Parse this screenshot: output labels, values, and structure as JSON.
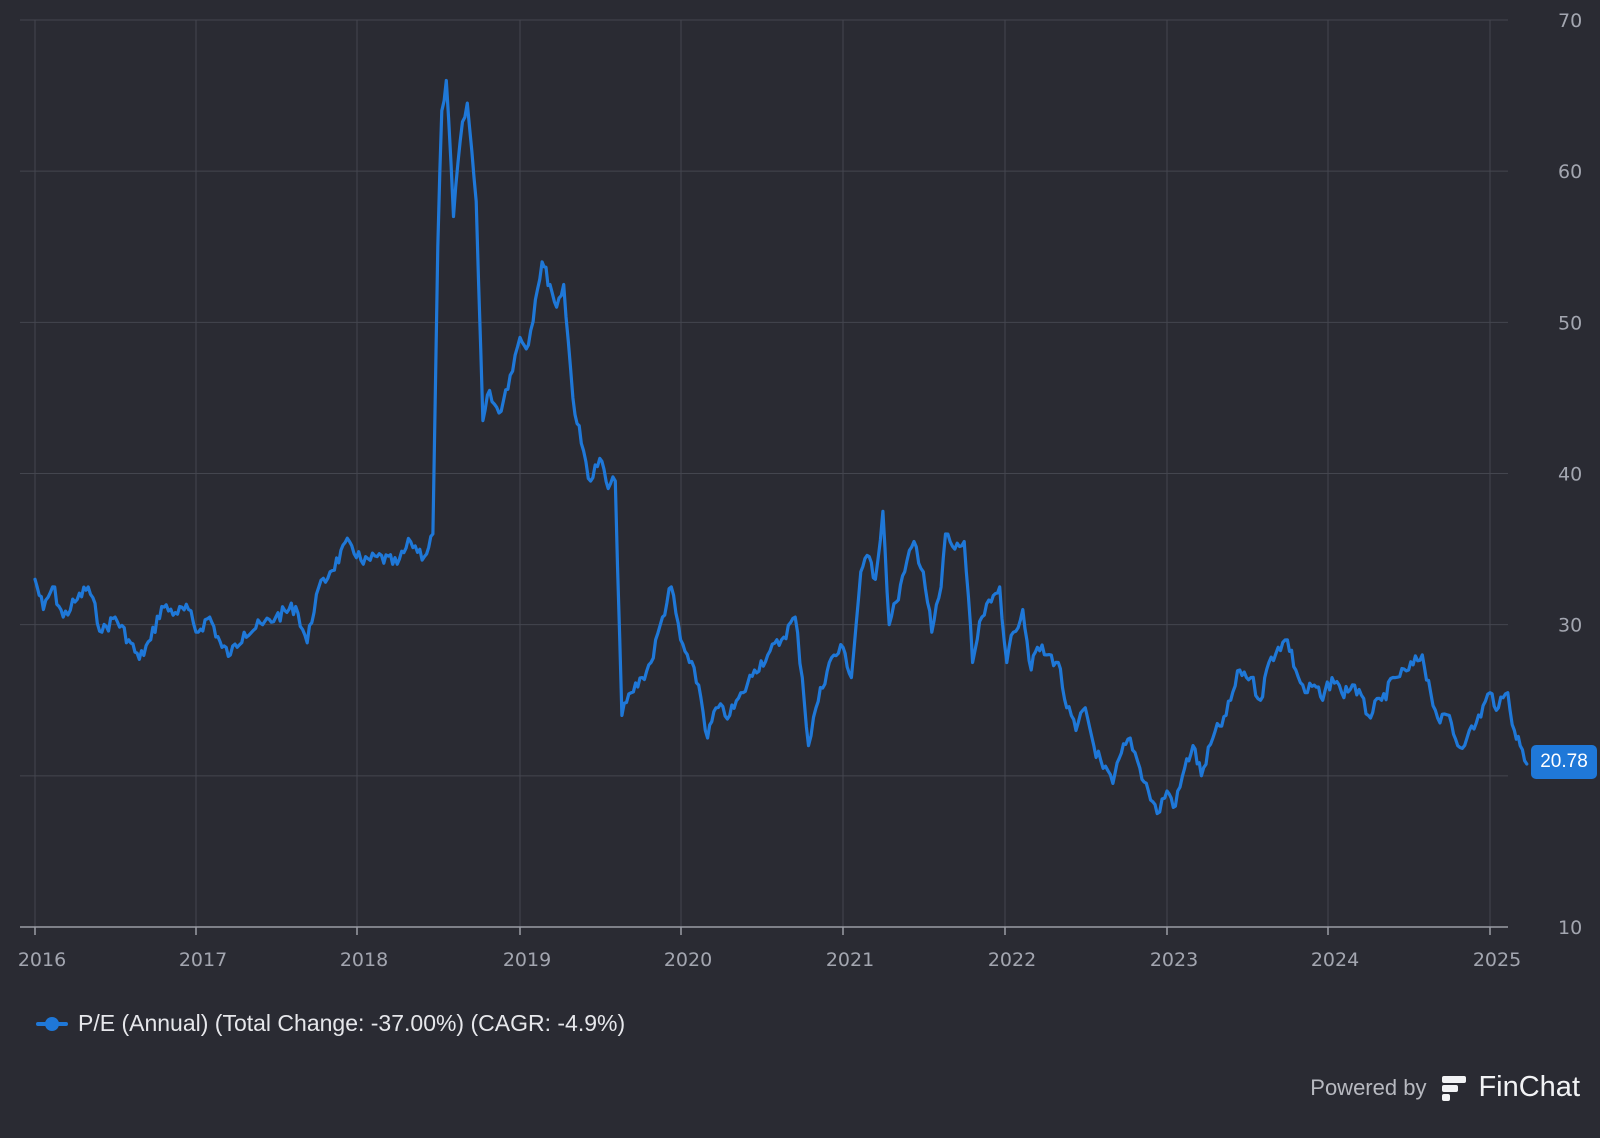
{
  "colors": {
    "background": "#2a2b33",
    "series": "#1f78d8",
    "grid": "#44464f"
  },
  "chart_data": {
    "type": "line",
    "title": "",
    "xlabel": "",
    "ylabel": "",
    "x_ticks": [
      "2016",
      "2017",
      "2018",
      "2019",
      "2020",
      "2021",
      "2022",
      "2023",
      "2024",
      "2025"
    ],
    "y_ticks": [
      10,
      30,
      40,
      50,
      60,
      70
    ],
    "ylim": [
      10,
      70
    ],
    "xlim": [
      "2016-01-01",
      "2025-03-31"
    ],
    "grid": true,
    "legend_position": "bottom-left",
    "last_value_label": "20.78",
    "series": [
      {
        "name": "P/E (Annual) (Total Change: -37.00%) (CAGR: -4.9%)",
        "points": [
          [
            "2016-01-01",
            33.0
          ],
          [
            "2016-01-20",
            31.0
          ],
          [
            "2016-02-10",
            32.5
          ],
          [
            "2016-03-05",
            30.5
          ],
          [
            "2016-04-01",
            31.5
          ],
          [
            "2016-05-01",
            32.5
          ],
          [
            "2016-06-01",
            29.5
          ],
          [
            "2016-07-01",
            30.5
          ],
          [
            "2016-08-01",
            29.0
          ],
          [
            "2016-08-25",
            27.7
          ],
          [
            "2016-09-20",
            29.0
          ],
          [
            "2016-10-15",
            31.2
          ],
          [
            "2016-11-15",
            30.8
          ],
          [
            "2016-12-15",
            31.0
          ],
          [
            "2017-01-01",
            29.5
          ],
          [
            "2017-02-01",
            30.5
          ],
          [
            "2017-03-01",
            28.5
          ],
          [
            "2017-03-20",
            28.0
          ],
          [
            "2017-04-20",
            29.5
          ],
          [
            "2017-06-01",
            30.0
          ],
          [
            "2017-07-01",
            30.5
          ],
          [
            "2017-08-15",
            31.2
          ],
          [
            "2017-09-10",
            28.8
          ],
          [
            "2017-10-01",
            32.0
          ],
          [
            "2017-11-01",
            33.5
          ],
          [
            "2017-12-15",
            35.5
          ],
          [
            "2018-01-15",
            34.0
          ],
          [
            "2018-02-15",
            34.5
          ],
          [
            "2018-04-01",
            34.0
          ],
          [
            "2018-05-01",
            35.5
          ],
          [
            "2018-06-01",
            34.5
          ],
          [
            "2018-06-20",
            36.0
          ],
          [
            "2018-07-01",
            55.0
          ],
          [
            "2018-07-10",
            64.0
          ],
          [
            "2018-07-20",
            66.0
          ],
          [
            "2018-08-05",
            57.0
          ],
          [
            "2018-08-20",
            62.0
          ],
          [
            "2018-09-05",
            64.5
          ],
          [
            "2018-09-25",
            58.0
          ],
          [
            "2018-10-10",
            43.5
          ],
          [
            "2018-10-25",
            45.5
          ],
          [
            "2018-11-15",
            44.0
          ],
          [
            "2018-12-10",
            46.5
          ],
          [
            "2019-01-01",
            49.0
          ],
          [
            "2019-01-20",
            48.5
          ],
          [
            "2019-02-05",
            51.5
          ],
          [
            "2019-02-20",
            54.0
          ],
          [
            "2019-03-10",
            52.5
          ],
          [
            "2019-03-25",
            51.0
          ],
          [
            "2019-04-10",
            52.5
          ],
          [
            "2019-05-01",
            45.0
          ],
          [
            "2019-05-20",
            42.0
          ],
          [
            "2019-06-10",
            39.5
          ],
          [
            "2019-07-01",
            41.0
          ],
          [
            "2019-07-20",
            39.0
          ],
          [
            "2019-08-05",
            39.5
          ],
          [
            "2019-08-20",
            24.0
          ],
          [
            "2019-09-10",
            25.5
          ],
          [
            "2019-10-05",
            26.5
          ],
          [
            "2019-10-25",
            27.5
          ],
          [
            "2019-11-20",
            30.5
          ],
          [
            "2019-12-10",
            32.5
          ],
          [
            "2019-12-31",
            29.0
          ],
          [
            "2020-01-20",
            27.5
          ],
          [
            "2020-02-10",
            26.0
          ],
          [
            "2020-03-01",
            22.5
          ],
          [
            "2020-03-20",
            24.5
          ],
          [
            "2020-04-20",
            24.0
          ],
          [
            "2020-05-20",
            25.5
          ],
          [
            "2020-06-15",
            27.0
          ],
          [
            "2020-07-15",
            28.0
          ],
          [
            "2020-08-15",
            29.0
          ],
          [
            "2020-09-15",
            30.5
          ],
          [
            "2020-10-01",
            26.5
          ],
          [
            "2020-10-15",
            22.0
          ],
          [
            "2020-11-01",
            24.5
          ],
          [
            "2020-12-01",
            27.5
          ],
          [
            "2021-01-01",
            28.5
          ],
          [
            "2021-01-20",
            26.5
          ],
          [
            "2021-02-10",
            33.5
          ],
          [
            "2021-03-01",
            34.5
          ],
          [
            "2021-03-15",
            33.0
          ],
          [
            "2021-04-01",
            37.5
          ],
          [
            "2021-04-15",
            30.0
          ],
          [
            "2021-05-01",
            31.5
          ],
          [
            "2021-05-20",
            33.5
          ],
          [
            "2021-06-10",
            35.5
          ],
          [
            "2021-07-01",
            33.5
          ],
          [
            "2021-07-20",
            29.5
          ],
          [
            "2021-08-10",
            32.5
          ],
          [
            "2021-08-20",
            36.0
          ],
          [
            "2021-09-10",
            35.0
          ],
          [
            "2021-10-01",
            35.5
          ],
          [
            "2021-10-20",
            27.5
          ],
          [
            "2021-11-10",
            30.5
          ],
          [
            "2021-12-01",
            31.5
          ],
          [
            "2021-12-20",
            32.5
          ],
          [
            "2022-01-05",
            27.5
          ],
          [
            "2022-01-20",
            29.5
          ],
          [
            "2022-02-10",
            31.0
          ],
          [
            "2022-03-01",
            27.0
          ],
          [
            "2022-03-15",
            28.5
          ],
          [
            "2022-04-05",
            28.0
          ],
          [
            "2022-05-01",
            27.5
          ],
          [
            "2022-05-20",
            24.5
          ],
          [
            "2022-06-10",
            23.0
          ],
          [
            "2022-07-01",
            24.5
          ],
          [
            "2022-07-20",
            22.0
          ],
          [
            "2022-08-10",
            20.5
          ],
          [
            "2022-09-01",
            19.5
          ],
          [
            "2022-09-20",
            21.5
          ],
          [
            "2022-10-10",
            22.5
          ],
          [
            "2022-11-01",
            20.5
          ],
          [
            "2022-11-20",
            19.0
          ],
          [
            "2022-12-10",
            17.5
          ],
          [
            "2023-01-01",
            19.0
          ],
          [
            "2023-01-20",
            18.0
          ],
          [
            "2023-02-10",
            20.5
          ],
          [
            "2023-03-01",
            22.0
          ],
          [
            "2023-03-20",
            20.0
          ],
          [
            "2023-04-15",
            22.5
          ],
          [
            "2023-05-15",
            24.0
          ],
          [
            "2023-06-15",
            27.0
          ],
          [
            "2023-07-10",
            26.5
          ],
          [
            "2023-08-01",
            25.0
          ],
          [
            "2023-08-20",
            27.5
          ],
          [
            "2023-09-10",
            28.5
          ],
          [
            "2023-10-01",
            29.0
          ],
          [
            "2023-10-20",
            27.0
          ],
          [
            "2023-11-10",
            25.5
          ],
          [
            "2023-12-01",
            26.0
          ],
          [
            "2023-12-20",
            25.0
          ],
          [
            "2024-01-10",
            26.5
          ],
          [
            "2024-02-01",
            25.5
          ],
          [
            "2024-03-01",
            26.0
          ],
          [
            "2024-04-01",
            24.0
          ],
          [
            "2024-05-01",
            25.0
          ],
          [
            "2024-06-01",
            26.5
          ],
          [
            "2024-07-01",
            27.0
          ],
          [
            "2024-08-01",
            28.0
          ],
          [
            "2024-08-20",
            25.5
          ],
          [
            "2024-09-10",
            23.5
          ],
          [
            "2024-10-01",
            24.0
          ],
          [
            "2024-10-20",
            22.0
          ],
          [
            "2024-11-10",
            22.5
          ],
          [
            "2024-12-01",
            23.5
          ],
          [
            "2025-01-01",
            25.5
          ],
          [
            "2025-01-20",
            24.5
          ],
          [
            "2025-02-10",
            25.5
          ],
          [
            "2025-02-25",
            23.0
          ],
          [
            "2025-03-10",
            22.0
          ],
          [
            "2025-03-25",
            20.78
          ]
        ]
      }
    ]
  },
  "legend": {
    "label": "P/E (Annual) (Total Change: -37.00%) (CAGR: -4.9%)"
  },
  "branding": {
    "powered_by": "Powered by",
    "brand_name": "FinChat"
  }
}
